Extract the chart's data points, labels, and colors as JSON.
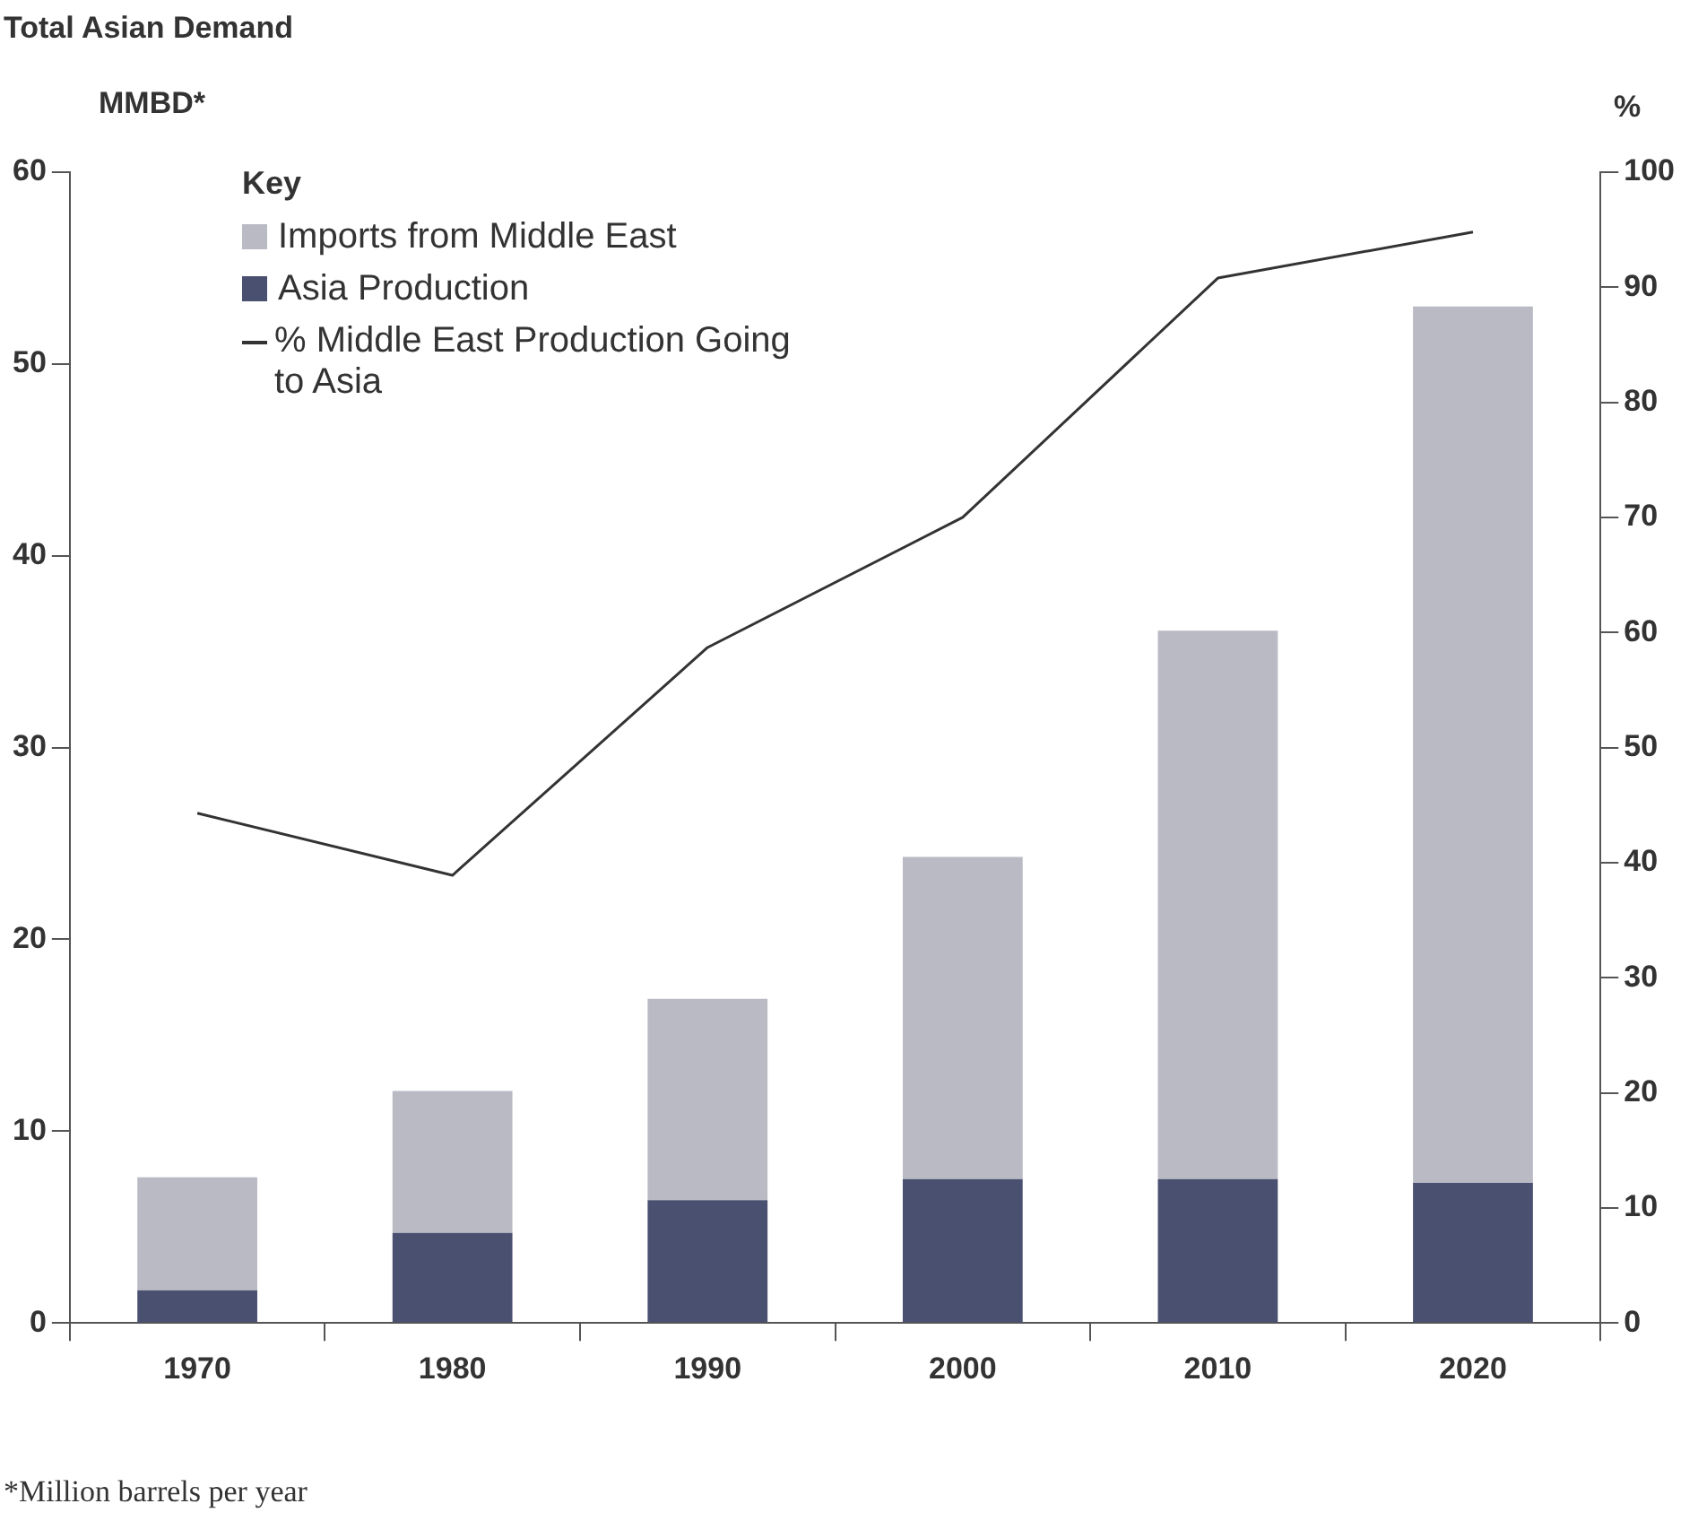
{
  "chart_data": {
    "type": "bar",
    "title": "Total Asian Demand",
    "ylabel": "MMBD*",
    "y2label": "%",
    "legend_title": "Key",
    "annotations": [
      "*Million barrels per year"
    ],
    "categories": [
      "1970",
      "1980",
      "1990",
      "2000",
      "2010",
      "2020"
    ],
    "stacked": true,
    "series": [
      {
        "name": "Asia Production",
        "color": "#4a5070",
        "values": [
          1.7,
          4.7,
          6.4,
          7.5,
          7.5,
          7.3
        ]
      },
      {
        "name": "Imports from Middle East",
        "color": "#b9bac4",
        "values": [
          5.9,
          7.4,
          10.5,
          16.8,
          28.6,
          45.7
        ]
      },
      {
        "name": "% Middle East Production Going to Asia",
        "type": "line",
        "axis": "y2",
        "color": "#333333",
        "values": [
          44.3,
          38.9,
          58.7,
          70,
          90.8,
          94.8
        ]
      }
    ],
    "ylim": [
      0,
      60
    ],
    "yticks": [
      0,
      10,
      20,
      30,
      40,
      50,
      60
    ],
    "y2lim": [
      0,
      100
    ],
    "y2ticks": [
      0,
      10,
      20,
      30,
      40,
      50,
      60,
      70,
      80,
      90,
      100
    ],
    "grid": false,
    "legend": "top left",
    "marker": "none",
    "line_style": "solid"
  }
}
